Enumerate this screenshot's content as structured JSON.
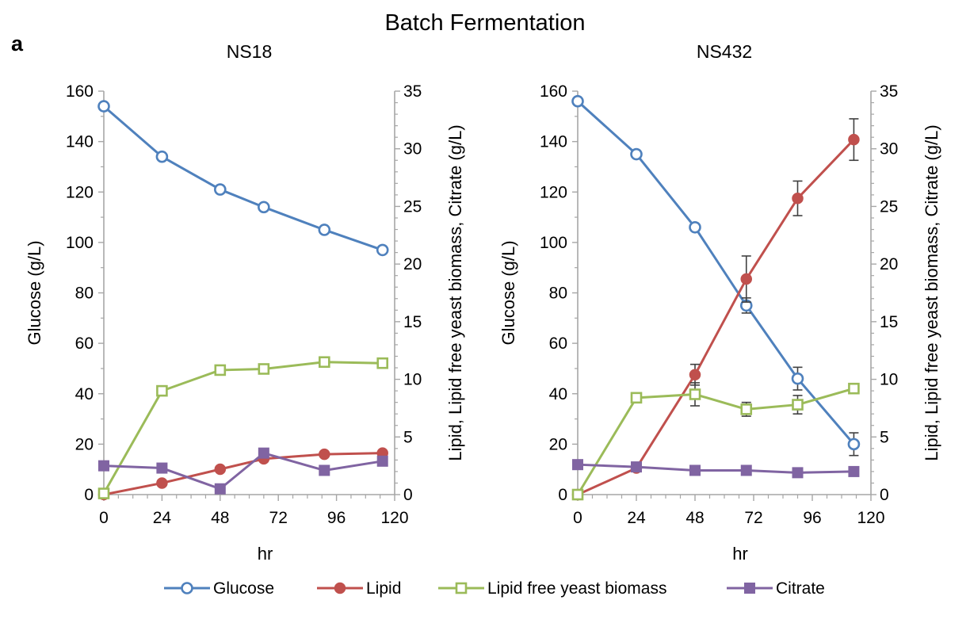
{
  "figure": {
    "title": "Batch Fermentation",
    "panel_letter": "a"
  },
  "legend": [
    "Glucose",
    "Lipid",
    "Lipid free yeast biomass",
    "Citrate"
  ],
  "colors": {
    "Glucose": "#4F81BD",
    "Lipid": "#C0504D",
    "Lipid free yeast biomass": "#9BBB59",
    "Citrate": "#8064A2",
    "axis": "#A6A6A6",
    "error_bar": "#404040"
  },
  "markers": {
    "Glucose": "open-circle",
    "Lipid": "filled-circle",
    "Lipid free yeast biomass": "open-square",
    "Citrate": "filled-square"
  },
  "chart_data": [
    {
      "type": "line",
      "title": "NS18",
      "xlabel": "hr",
      "ylabel": "Glucose (g/L)",
      "y2label": "Lipid, Lipid free yeast biomass, Citrate (g/L)",
      "xlim": [
        0,
        120
      ],
      "xticks": [
        0,
        24,
        48,
        72,
        96,
        120
      ],
      "ylim": [
        0,
        160
      ],
      "yticks": [
        0,
        20,
        40,
        60,
        80,
        100,
        120,
        140,
        160
      ],
      "y2lim": [
        0,
        35
      ],
      "y2ticks": [
        0,
        5,
        10,
        15,
        20,
        25,
        30,
        35
      ],
      "series": [
        {
          "name": "Glucose",
          "axis": "left",
          "x": [
            0,
            24,
            48,
            66,
            91,
            115
          ],
          "values": [
            154,
            134,
            121,
            114,
            105,
            97
          ]
        },
        {
          "name": "Lipid",
          "axis": "right",
          "x": [
            0,
            24,
            48,
            66,
            91,
            115
          ],
          "values": [
            0,
            1.0,
            2.2,
            3.1,
            3.5,
            3.6
          ]
        },
        {
          "name": "Lipid free yeast biomass",
          "axis": "right",
          "x": [
            0,
            24,
            48,
            66,
            91,
            115
          ],
          "values": [
            0.1,
            9.0,
            10.8,
            10.9,
            11.5,
            11.4
          ]
        },
        {
          "name": "Citrate",
          "axis": "right",
          "x": [
            0,
            24,
            48,
            66,
            91,
            115
          ],
          "values": [
            2.5,
            2.3,
            0.5,
            3.6,
            2.1,
            2.9
          ]
        }
      ]
    },
    {
      "type": "line",
      "title": "NS432",
      "xlabel": "hr",
      "ylabel": "Glucose (g/L)",
      "y2label": "Lipid, Lipid free yeast biomass, Citrate (g/L)",
      "xlim": [
        0,
        120
      ],
      "xticks": [
        0,
        24,
        48,
        72,
        96,
        120
      ],
      "ylim": [
        0,
        160
      ],
      "yticks": [
        0,
        20,
        40,
        60,
        80,
        100,
        120,
        140,
        160
      ],
      "y2lim": [
        0,
        35
      ],
      "y2ticks": [
        0,
        5,
        10,
        15,
        20,
        25,
        30,
        35
      ],
      "series": [
        {
          "name": "Glucose",
          "axis": "left",
          "x": [
            0,
            24,
            48,
            69,
            90,
            113
          ],
          "values": [
            156,
            135,
            106,
            75,
            46,
            20
          ],
          "error": [
            0,
            0,
            0,
            3,
            4.5,
            4.5
          ]
        },
        {
          "name": "Lipid",
          "axis": "right",
          "x": [
            0,
            24,
            48,
            69,
            90,
            113
          ],
          "values": [
            0,
            2.3,
            10.4,
            18.7,
            25.7,
            30.8
          ],
          "error": [
            0,
            0,
            0.9,
            2.0,
            1.5,
            1.8
          ]
        },
        {
          "name": "Lipid free yeast biomass",
          "axis": "right",
          "x": [
            0,
            24,
            48,
            69,
            90,
            113
          ],
          "values": [
            0,
            8.4,
            8.7,
            7.4,
            7.8,
            9.2
          ],
          "error": [
            0,
            0,
            1.0,
            0.6,
            0.8,
            0
          ]
        },
        {
          "name": "Citrate",
          "axis": "right",
          "x": [
            0,
            24,
            48,
            69,
            90,
            113
          ],
          "values": [
            2.6,
            2.4,
            2.1,
            2.1,
            1.9,
            2.0
          ]
        }
      ]
    }
  ]
}
